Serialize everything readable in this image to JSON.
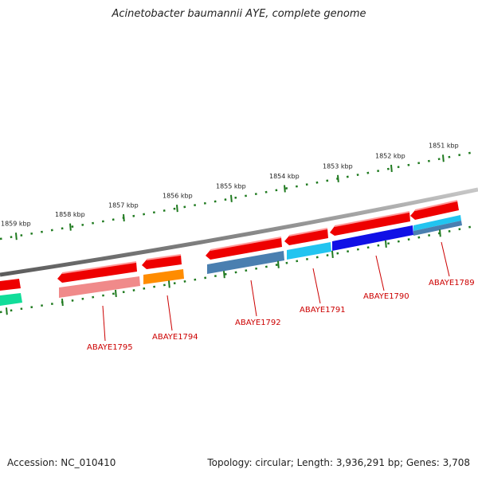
{
  "title": "Acinetobacter baumannii AYE, complete genome",
  "footer": {
    "accession": "Accession: NC_010410",
    "summary": "Topology: circular; Length: 3,936,291 bp; Genes: 3,708"
  },
  "colors": {
    "backbone": "#8a8a8a",
    "tick": "#1f7a1f",
    "tick_label": "#222222",
    "gene_label": "#cc0000",
    "leader": "#cc0000"
  },
  "scale": {
    "ticks_kbp": [
      {
        "label": "1851 kbp"
      },
      {
        "label": "1852 kbp"
      },
      {
        "label": "1853 kbp"
      },
      {
        "label": "1854 kbp"
      },
      {
        "label": "1855 kbp"
      },
      {
        "label": "1856 kbp"
      },
      {
        "label": "1857 kbp"
      },
      {
        "label": "1858 kbp"
      },
      {
        "label": "1859 kbp"
      }
    ]
  },
  "gene_labels": [
    {
      "name": "ABAYE1789"
    },
    {
      "name": "ABAYE1790"
    },
    {
      "name": "ABAYE1791"
    },
    {
      "name": "ABAYE1792"
    },
    {
      "name": "ABAYE1794"
    },
    {
      "name": "ABAYE1795"
    }
  ],
  "feature_colors": {
    "cds": "#ee0000",
    "steelblue": "#4a7fb0",
    "sky": "#22c4f0",
    "blue": "#1010e6",
    "orange": "#ff8c00",
    "pink": "#f08a8a",
    "teal": "#11dd99"
  }
}
